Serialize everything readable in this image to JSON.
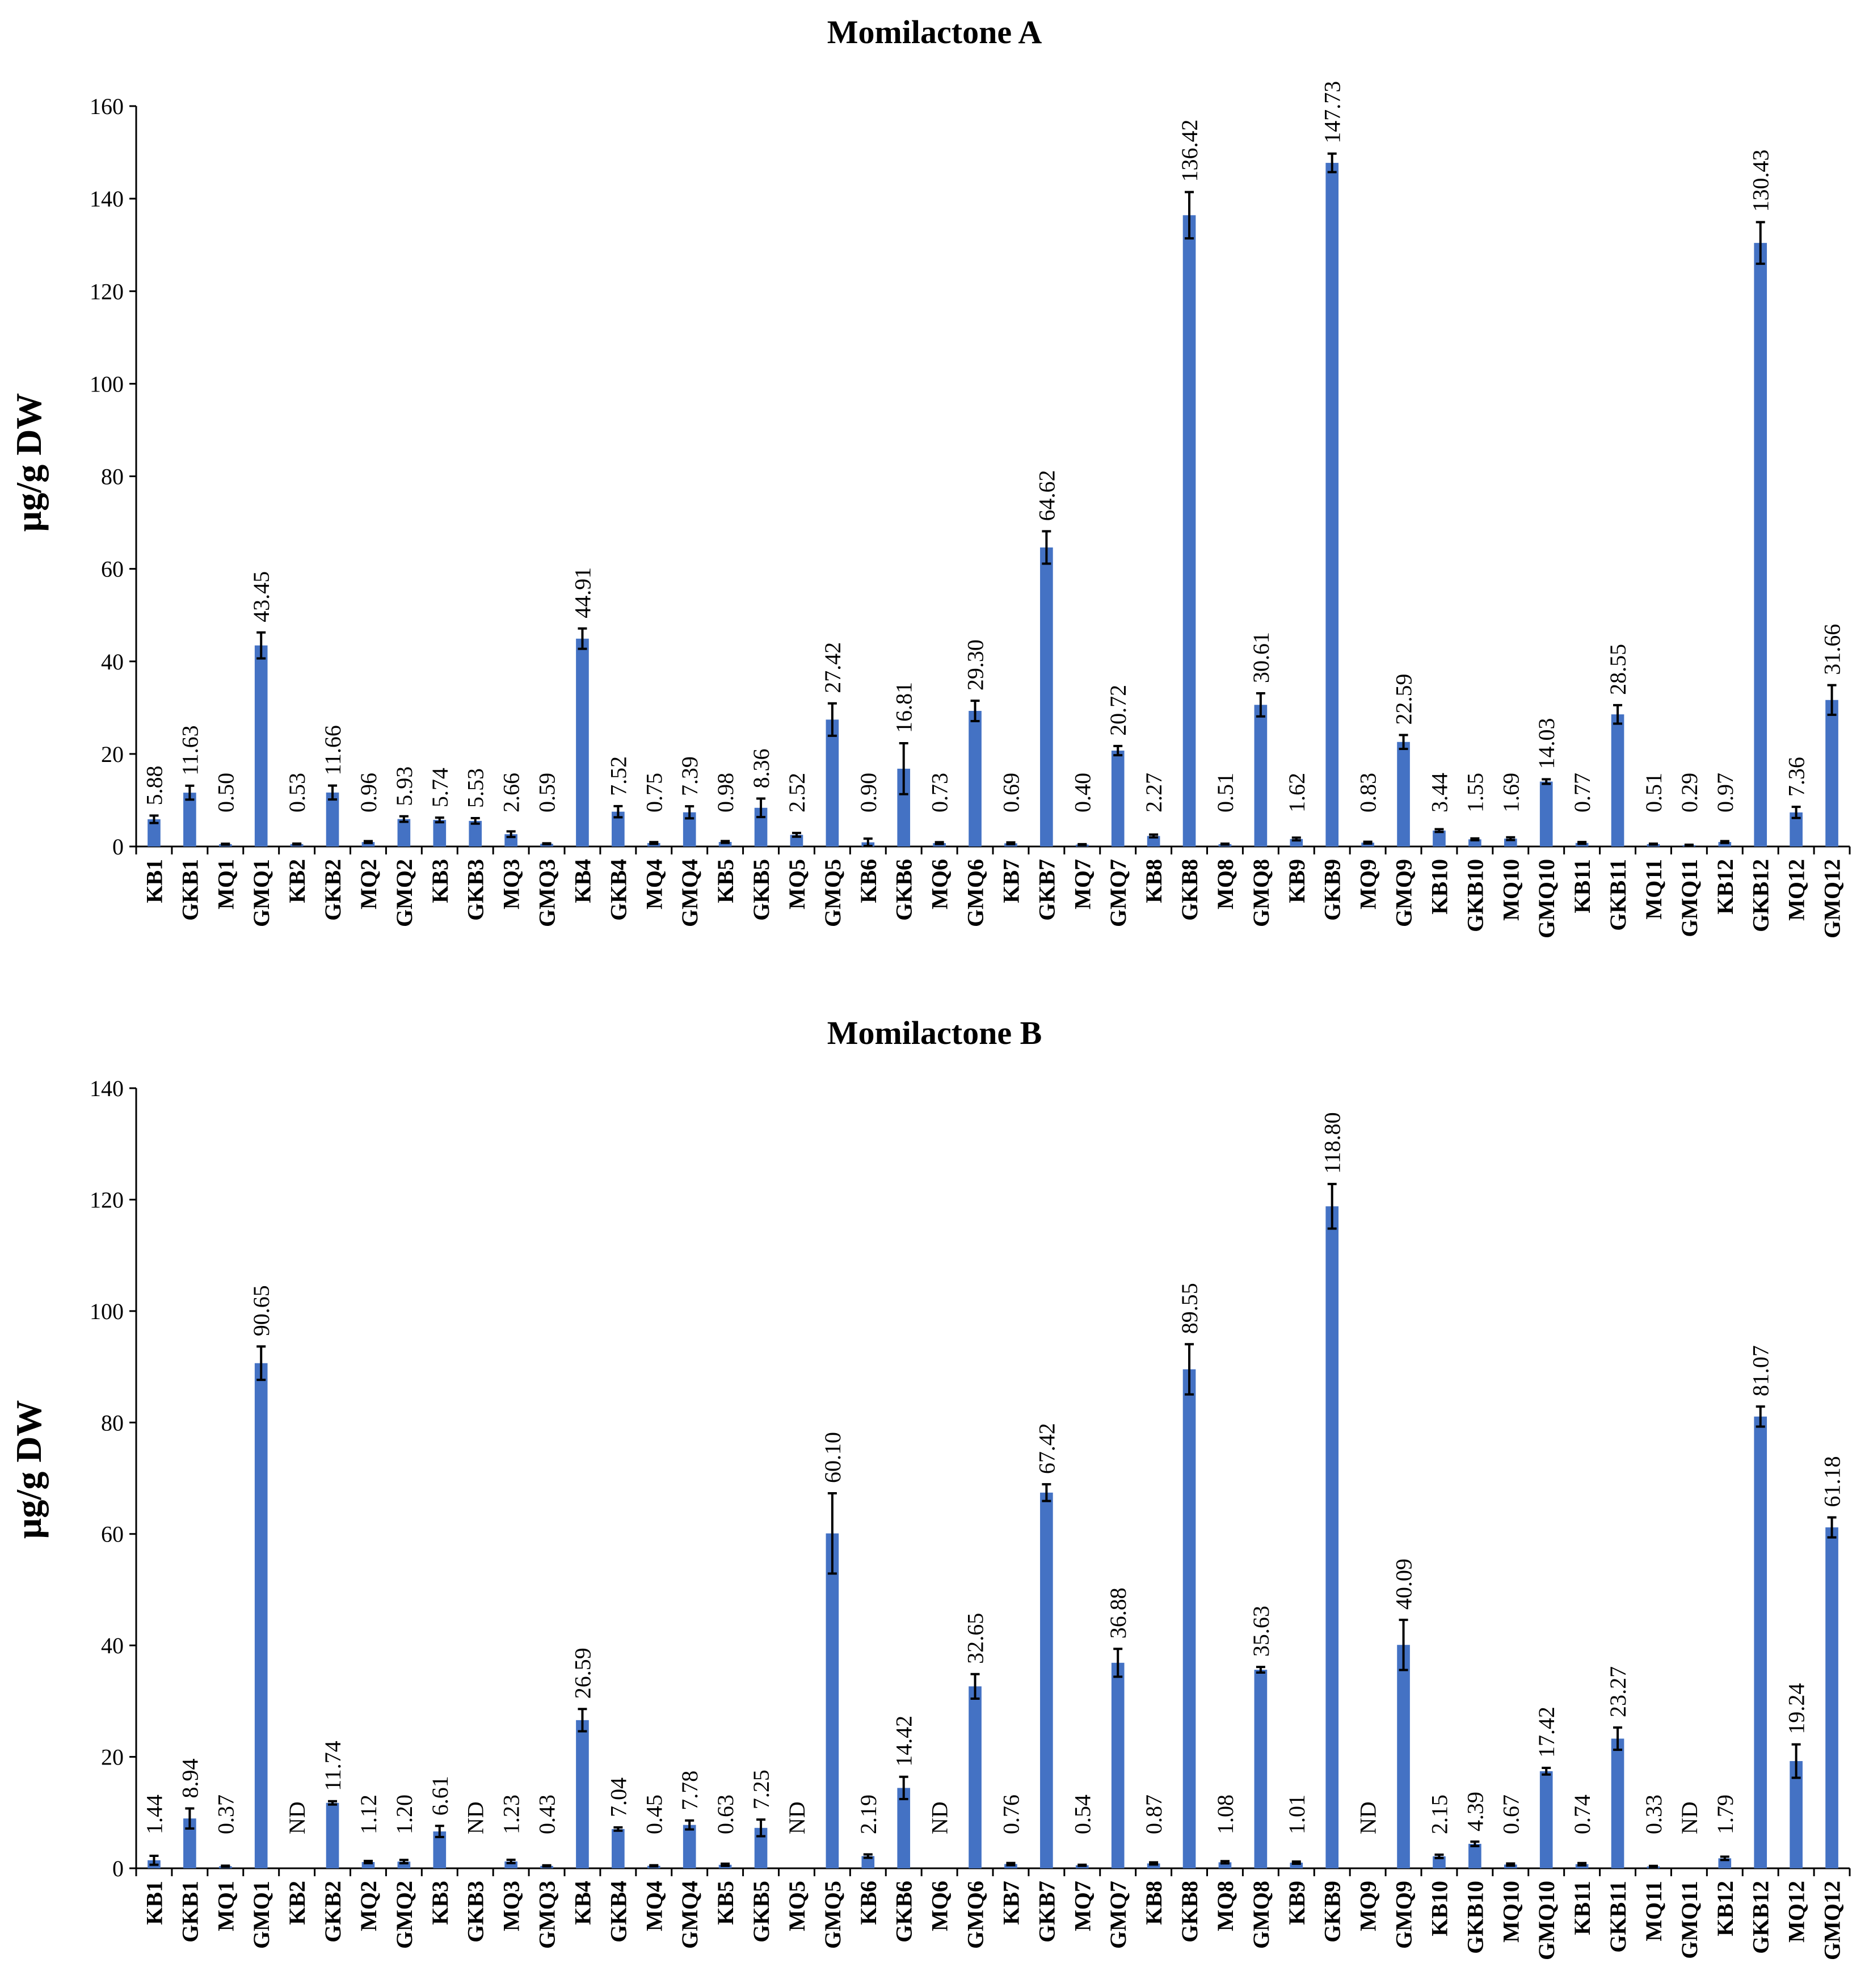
{
  "colors": {
    "bar": "#4472C4",
    "axis": "#000000",
    "text": "#000000"
  },
  "chart_data": [
    {
      "type": "bar",
      "title": "Momilactone A",
      "xlabel": "",
      "ylabel": "µg/g DW",
      "ylim": [
        0,
        160
      ],
      "yticks": [
        0,
        20,
        40,
        60,
        80,
        100,
        120,
        140,
        160
      ],
      "grid": false,
      "categories": [
        "KB1",
        "GKB1",
        "MQ1",
        "GMQ1",
        "KB2",
        "GKB2",
        "MQ2",
        "GMQ2",
        "KB3",
        "GKB3",
        "MQ3",
        "GMQ3",
        "KB4",
        "GKB4",
        "MQ4",
        "GMQ4",
        "KB5",
        "GKB5",
        "MQ5",
        "GMQ5",
        "KB6",
        "GKB6",
        "MQ6",
        "GMQ6",
        "KB7",
        "GKB7",
        "MQ7",
        "GMQ7",
        "KB8",
        "GKB8",
        "MQ8",
        "GMQ8",
        "KB9",
        "GKB9",
        "MQ9",
        "GMQ9",
        "KB10",
        "GKB10",
        "MQ10",
        "GMQ10",
        "KB11",
        "GKB11",
        "MQ11",
        "GMQ11",
        "KB12",
        "GKB12",
        "MQ12",
        "GMQ12"
      ],
      "values": [
        5.88,
        11.63,
        0.5,
        43.45,
        0.53,
        11.66,
        0.96,
        5.93,
        5.74,
        5.53,
        2.66,
        0.59,
        44.91,
        7.52,
        0.75,
        7.39,
        0.98,
        8.36,
        2.52,
        27.42,
        0.9,
        16.81,
        0.73,
        29.3,
        0.69,
        64.62,
        0.4,
        20.72,
        2.27,
        136.42,
        0.51,
        30.61,
        1.62,
        147.73,
        0.83,
        22.59,
        3.44,
        1.55,
        1.69,
        14.03,
        0.77,
        28.55,
        0.51,
        0.29,
        0.97,
        130.43,
        7.36,
        31.66
      ],
      "errors": [
        0.8,
        1.5,
        0.1,
        2.8,
        0.1,
        1.5,
        0.2,
        0.6,
        0.5,
        0.6,
        0.6,
        0.1,
        2.2,
        1.2,
        0.2,
        1.3,
        0.2,
        2.0,
        0.4,
        3.5,
        0.8,
        5.5,
        0.2,
        2.2,
        0.2,
        3.5,
        0.1,
        1.0,
        0.3,
        5.0,
        0.1,
        2.5,
        0.3,
        2.0,
        0.2,
        1.5,
        0.3,
        0.2,
        0.3,
        0.5,
        0.2,
        2.0,
        0.1,
        0.1,
        0.2,
        4.5,
        1.2,
        3.2
      ],
      "labels": [
        "5.88",
        "11.63",
        "0.50",
        "43.45",
        "0.53",
        "11.66",
        "0.96",
        "5.93",
        "5.74",
        "5.53",
        "2.66",
        "0.59",
        "44.91",
        "7.52",
        "0.75",
        "7.39",
        "0.98",
        "8.36",
        "2.52",
        "27.42",
        "0.90",
        "16.81",
        "0.73",
        "29.30",
        "0.69",
        "64.62",
        "0.40",
        "20.72",
        "2.27",
        "136.42",
        "0.51",
        "30.61",
        "1.62",
        "147.73",
        "0.83",
        "22.59",
        "3.44",
        "1.55",
        "1.69",
        "14.03",
        "0.77",
        "28.55",
        "0.51",
        "0.29",
        "0.97",
        "130.43",
        "7.36",
        "31.66"
      ]
    },
    {
      "type": "bar",
      "title": "Momilactone B",
      "xlabel": "",
      "ylabel": "µg/g DW",
      "ylim": [
        0,
        140
      ],
      "yticks": [
        0,
        20,
        40,
        60,
        80,
        100,
        120,
        140
      ],
      "grid": false,
      "categories": [
        "KB1",
        "GKB1",
        "MQ1",
        "GMQ1",
        "KB2",
        "GKB2",
        "MQ2",
        "GMQ2",
        "KB3",
        "GKB3",
        "MQ3",
        "GMQ3",
        "KB4",
        "GKB4",
        "MQ4",
        "GMQ4",
        "KB5",
        "GKB5",
        "MQ5",
        "GMQ5",
        "KB6",
        "GKB6",
        "MQ6",
        "GMQ6",
        "KB7",
        "GKB7",
        "MQ7",
        "GMQ7",
        "KB8",
        "GKB8",
        "MQ8",
        "GMQ8",
        "KB9",
        "GKB9",
        "MQ9",
        "GMQ9",
        "KB10",
        "GKB10",
        "MQ10",
        "GMQ10",
        "KB11",
        "GKB11",
        "MQ11",
        "GMQ11",
        "KB12",
        "GKB12",
        "MQ12",
        "GMQ12"
      ],
      "values": [
        1.44,
        8.94,
        0.37,
        90.65,
        0,
        11.74,
        1.12,
        1.2,
        6.61,
        0,
        1.23,
        0.43,
        26.59,
        7.04,
        0.45,
        7.78,
        0.63,
        7.25,
        0,
        60.1,
        2.19,
        14.42,
        0,
        32.65,
        0.76,
        67.42,
        0.54,
        36.88,
        0.87,
        89.55,
        1.08,
        35.63,
        1.01,
        118.8,
        0,
        40.09,
        2.15,
        4.39,
        0.67,
        17.42,
        0.74,
        23.27,
        0.33,
        0,
        1.79,
        81.07,
        19.24,
        61.18
      ],
      "errors": [
        0.8,
        1.8,
        0.1,
        3.0,
        0,
        0.3,
        0.2,
        0.3,
        1.0,
        0,
        0.3,
        0.1,
        2.0,
        0.3,
        0.1,
        0.8,
        0.2,
        1.5,
        0,
        7.2,
        0.3,
        2.0,
        0,
        2.2,
        0.2,
        1.5,
        0.1,
        2.5,
        0.2,
        4.5,
        0.2,
        0.5,
        0.2,
        4.0,
        0,
        4.5,
        0.3,
        0.4,
        0.2,
        0.6,
        0.2,
        2.0,
        0.1,
        0,
        0.3,
        1.8,
        3.0,
        1.8
      ],
      "labels": [
        "1.44",
        "8.94",
        "0.37",
        "90.65",
        "ND",
        "11.74",
        "1.12",
        "1.20",
        "6.61",
        "ND",
        "1.23",
        "0.43",
        "26.59",
        "7.04",
        "0.45",
        "7.78",
        "0.63",
        "7.25",
        "ND",
        "60.10",
        "2.19",
        "14.42",
        "ND",
        "32.65",
        "0.76",
        "67.42",
        "0.54",
        "36.88",
        "0.87",
        "89.55",
        "1.08",
        "35.63",
        "1.01",
        "118.80",
        "ND",
        "40.09",
        "2.15",
        "4.39",
        "0.67",
        "17.42",
        "0.74",
        "23.27",
        "0.33",
        "ND",
        "1.79",
        "81.07",
        "19.24",
        "61.18"
      ]
    }
  ]
}
